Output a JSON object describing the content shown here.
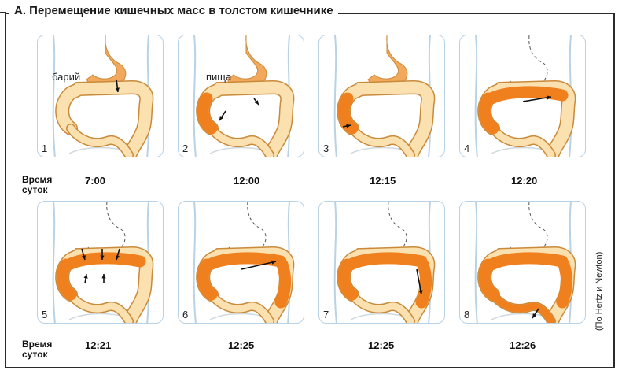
{
  "title": "А. Перемещение кишечных масс в толстом кишечнике",
  "credit": "(По Hertz и Newton)",
  "row_label": "Время суток",
  "callouts": {
    "barium": "барий",
    "food": "пища"
  },
  "panels": [
    {
      "num": "1",
      "time": "7:00"
    },
    {
      "num": "2",
      "time": "12:00"
    },
    {
      "num": "3",
      "time": "12:15"
    },
    {
      "num": "4",
      "time": "12:20"
    },
    {
      "num": "5",
      "time": "12:21"
    },
    {
      "num": "6",
      "time": "12:25"
    },
    {
      "num": "7",
      "time": "12:25"
    },
    {
      "num": "8",
      "time": "12:26"
    }
  ],
  "colors": {
    "barium": "#f07f1e",
    "colon": "#fbe0b0",
    "outline": "#c98a3a",
    "stomach": "#f2a95c",
    "body": "#b9d2e6"
  }
}
